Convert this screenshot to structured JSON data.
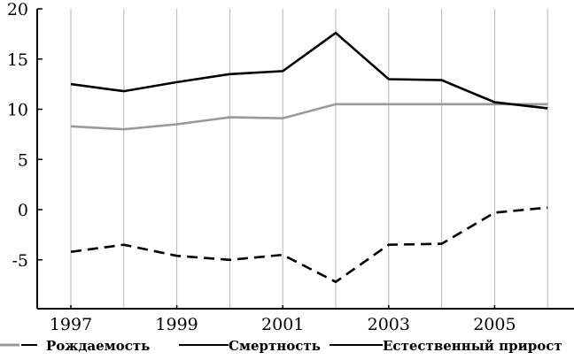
{
  "chart_data": {
    "type": "line",
    "title": "",
    "xlabel": "",
    "ylabel": "",
    "x": [
      1997,
      1998,
      1999,
      2000,
      2001,
      2002,
      2003,
      2004,
      2005,
      2006
    ],
    "x_tick_labels": [
      "1997",
      "1999",
      "2001",
      "2003",
      "2005"
    ],
    "y_tick_labels": [
      "20",
      "15",
      "10",
      "5",
      "0",
      "-5"
    ],
    "ylim": [
      -10,
      20
    ],
    "grid": "vertical",
    "legend_placement": "bottom",
    "series": [
      {
        "name": "Рождаемость",
        "color": "#9a9a9a",
        "style": "solid",
        "values": [
          8.3,
          8.0,
          8.5,
          9.2,
          9.1,
          10.5,
          10.5,
          10.5,
          10.5,
          10.5
        ]
      },
      {
        "name": "Смертность",
        "color": "#000000",
        "style": "solid",
        "values": [
          12.5,
          11.8,
          12.7,
          13.5,
          13.8,
          17.6,
          13.0,
          12.9,
          10.7,
          10.1
        ]
      },
      {
        "name": "Естественный прирост",
        "color": "#000000",
        "style": "dashed",
        "values": [
          -4.2,
          -3.5,
          -4.6,
          -5.0,
          -4.5,
          -7.2,
          -3.5,
          -3.4,
          -0.3,
          0.2
        ]
      }
    ]
  }
}
